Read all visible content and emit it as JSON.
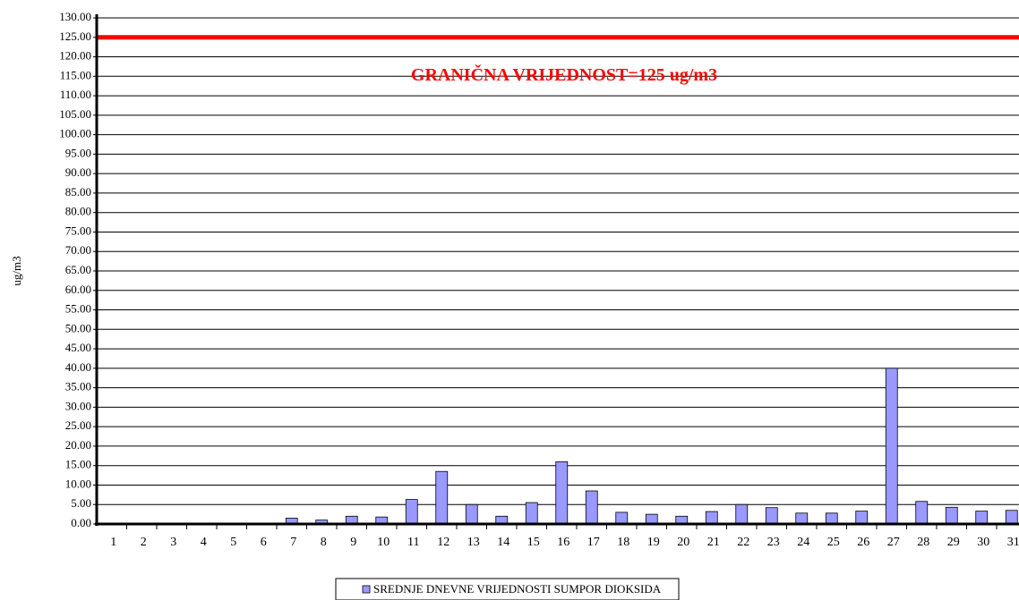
{
  "chart_data": {
    "type": "bar",
    "y_label": "ug/m3",
    "categories": [
      "1",
      "2",
      "3",
      "4",
      "5",
      "6",
      "7",
      "8",
      "9",
      "10",
      "11",
      "12",
      "13",
      "14",
      "15",
      "16",
      "17",
      "18",
      "19",
      "20",
      "21",
      "22",
      "23",
      "24",
      "25",
      "26",
      "27",
      "28",
      "29",
      "30",
      "31"
    ],
    "series": [
      {
        "name": "SREDNJE DNEVNE VRIJEDNOSTI SUMPOR DIOKSIDA",
        "color": "#9999ff",
        "values": [
          0,
          0,
          0,
          0,
          0,
          0,
          1.5,
          1.0,
          2.0,
          1.8,
          6.3,
          13.5,
          5.0,
          2.0,
          5.5,
          16.0,
          8.5,
          3.0,
          2.5,
          2.0,
          3.2,
          5.0,
          4.2,
          2.8,
          2.8,
          3.3,
          40.0,
          5.8,
          4.3,
          3.3,
          3.5
        ]
      }
    ],
    "reference_line": {
      "value": 125,
      "color": "#ff0000",
      "label": "GRANIČNA VRIJEDNOST=125 ug/m3"
    },
    "ylim": [
      0,
      130
    ],
    "yticks": [
      {
        "value": 0,
        "label": "0.00"
      },
      {
        "value": 5,
        "label": "5.00"
      },
      {
        "value": 10,
        "label": "10.00"
      },
      {
        "value": 15,
        "label": "15.00"
      },
      {
        "value": 20,
        "label": "20.00"
      },
      {
        "value": 25,
        "label": "25.00"
      },
      {
        "value": 30,
        "label": "30.00"
      },
      {
        "value": 35,
        "label": "35.00"
      },
      {
        "value": 40,
        "label": "40.00"
      },
      {
        "value": 45,
        "label": "45.00"
      },
      {
        "value": 50,
        "label": "50.00"
      },
      {
        "value": 55,
        "label": "55.00"
      },
      {
        "value": 60,
        "label": "60.00"
      },
      {
        "value": 65,
        "label": "65.00"
      },
      {
        "value": 70,
        "label": "70.00"
      },
      {
        "value": 75,
        "label": "75.00"
      },
      {
        "value": 80,
        "label": "80.00"
      },
      {
        "value": 85,
        "label": "85.00"
      },
      {
        "value": 90,
        "label": "90.00"
      },
      {
        "value": 95,
        "label": "95.00"
      },
      {
        "value": 100,
        "label": "100.00"
      },
      {
        "value": 105,
        "label": "105.00"
      },
      {
        "value": 110,
        "label": "110.00"
      },
      {
        "value": 115,
        "label": "115.00"
      },
      {
        "value": 120,
        "label": "120.00"
      },
      {
        "value": 125,
        "label": "125.00"
      },
      {
        "value": 130,
        "label": "130.00"
      }
    ],
    "grid": true
  }
}
